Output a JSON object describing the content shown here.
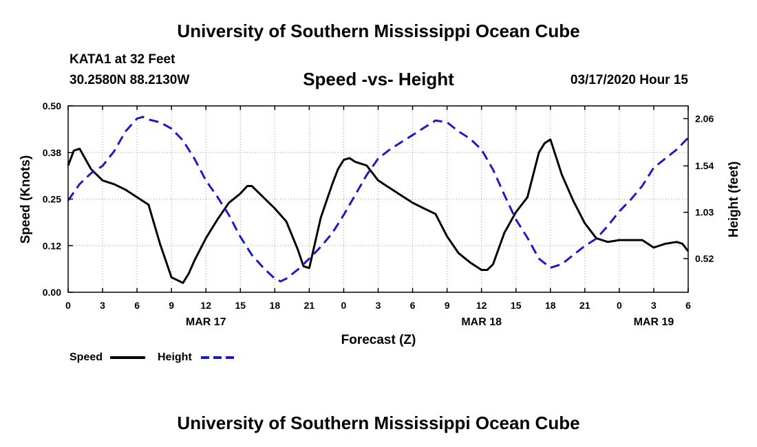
{
  "header": {
    "top_title": "University of Southern Mississippi Ocean Cube",
    "bottom_title": "University of Southern Mississippi Ocean Cube",
    "station": "KATA1 at 32 Feet",
    "coords": "30.2580N 88.2130W",
    "datetime": "03/17/2020 Hour 15"
  },
  "colors": {
    "speed": "#000000",
    "height": "#1a1acc",
    "grid": "#999999"
  },
  "chart_data": {
    "type": "line",
    "title": "Speed -vs- Height",
    "xlabel": "Forecast (Z)",
    "ylabel": "Speed (Knots)",
    "y2label": "Height (feet)",
    "x_unit": "hours from Mar 17 00Z",
    "xlim": [
      0,
      54
    ],
    "ylim": [
      0,
      0.5
    ],
    "y2lim": [
      0.15,
      2.2
    ],
    "x_ticks": [
      0,
      3,
      6,
      9,
      12,
      15,
      18,
      21,
      24,
      27,
      30,
      33,
      36,
      39,
      42,
      45,
      48,
      51,
      54
    ],
    "x_tick_labels": [
      "0",
      "3",
      "6",
      "9",
      "12",
      "15",
      "18",
      "21",
      "0",
      "3",
      "6",
      "9",
      "12",
      "15",
      "18",
      "21",
      "0",
      "3",
      "6"
    ],
    "y_ticks": [
      0,
      0.125,
      0.25,
      0.375,
      0.5
    ],
    "y_tick_labels": [
      "0.00",
      "0.12",
      "0.25",
      "0.38",
      "0.50"
    ],
    "y2_ticks": [
      0.52,
      1.03,
      1.54,
      2.06
    ],
    "y2_tick_labels": [
      "0.52",
      "1.03",
      "1.54",
      "2.06"
    ],
    "date_labels": [
      {
        "x": 12,
        "label": "MAR 17"
      },
      {
        "x": 36,
        "label": "MAR 18"
      },
      {
        "x": 51,
        "label": "MAR 19"
      }
    ],
    "series": [
      {
        "name": "Speed",
        "axis": "left",
        "style": "solid",
        "x": [
          0,
          0.5,
          1,
          2,
          3,
          4,
          5,
          6,
          7,
          8,
          9,
          10,
          10.5,
          11,
          12,
          13,
          14,
          15,
          15.6,
          16,
          17,
          18,
          19,
          20,
          20.5,
          21,
          22,
          23,
          23.5,
          24,
          24.5,
          25,
          26,
          27,
          28,
          29,
          30,
          31,
          32,
          33,
          34,
          35,
          36,
          36.5,
          37,
          38,
          39,
          40,
          41,
          41.5,
          42,
          43,
          44,
          45,
          46,
          47,
          48,
          49,
          50,
          51,
          52,
          53,
          53.5,
          54
        ],
        "values": [
          0.34,
          0.38,
          0.385,
          0.33,
          0.3,
          0.29,
          0.275,
          0.255,
          0.235,
          0.13,
          0.04,
          0.025,
          0.05,
          0.085,
          0.145,
          0.195,
          0.24,
          0.265,
          0.285,
          0.285,
          0.255,
          0.225,
          0.19,
          0.115,
          0.07,
          0.065,
          0.2,
          0.29,
          0.33,
          0.355,
          0.36,
          0.35,
          0.34,
          0.3,
          0.28,
          0.26,
          0.24,
          0.225,
          0.21,
          0.15,
          0.105,
          0.08,
          0.06,
          0.06,
          0.075,
          0.16,
          0.215,
          0.255,
          0.375,
          0.4,
          0.41,
          0.315,
          0.245,
          0.185,
          0.145,
          0.135,
          0.14,
          0.14,
          0.14,
          0.12,
          0.13,
          0.135,
          0.13,
          0.11
        ]
      },
      {
        "name": "Height",
        "axis": "right",
        "style": "dashed",
        "x": [
          0,
          1,
          2,
          3,
          4,
          5,
          6,
          6.5,
          7,
          8,
          9,
          10,
          11,
          12,
          13,
          14,
          15,
          16,
          17,
          18,
          18.5,
          19,
          20,
          21,
          22,
          23,
          24,
          25,
          26,
          27,
          28,
          29,
          30,
          31,
          32,
          33,
          34,
          35,
          36,
          37,
          38,
          39,
          40,
          41,
          42,
          43,
          44,
          45,
          46,
          47,
          48,
          49,
          50,
          51,
          52,
          53,
          54
        ],
        "values": [
          1.16,
          1.34,
          1.46,
          1.54,
          1.7,
          1.92,
          2.06,
          2.08,
          2.05,
          2.02,
          1.95,
          1.82,
          1.62,
          1.38,
          1.2,
          1.0,
          0.76,
          0.56,
          0.42,
          0.3,
          0.27,
          0.3,
          0.4,
          0.52,
          0.65,
          0.8,
          1.0,
          1.22,
          1.44,
          1.62,
          1.72,
          1.8,
          1.88,
          1.96,
          2.04,
          2.02,
          1.92,
          1.84,
          1.72,
          1.5,
          1.22,
          0.95,
          0.75,
          0.52,
          0.42,
          0.46,
          0.56,
          0.66,
          0.74,
          0.88,
          1.04,
          1.17,
          1.32,
          1.52,
          1.62,
          1.72,
          1.85
        ]
      }
    ],
    "legend": {
      "placement": "bottom-left",
      "entries": [
        "Speed",
        "Height"
      ]
    }
  }
}
